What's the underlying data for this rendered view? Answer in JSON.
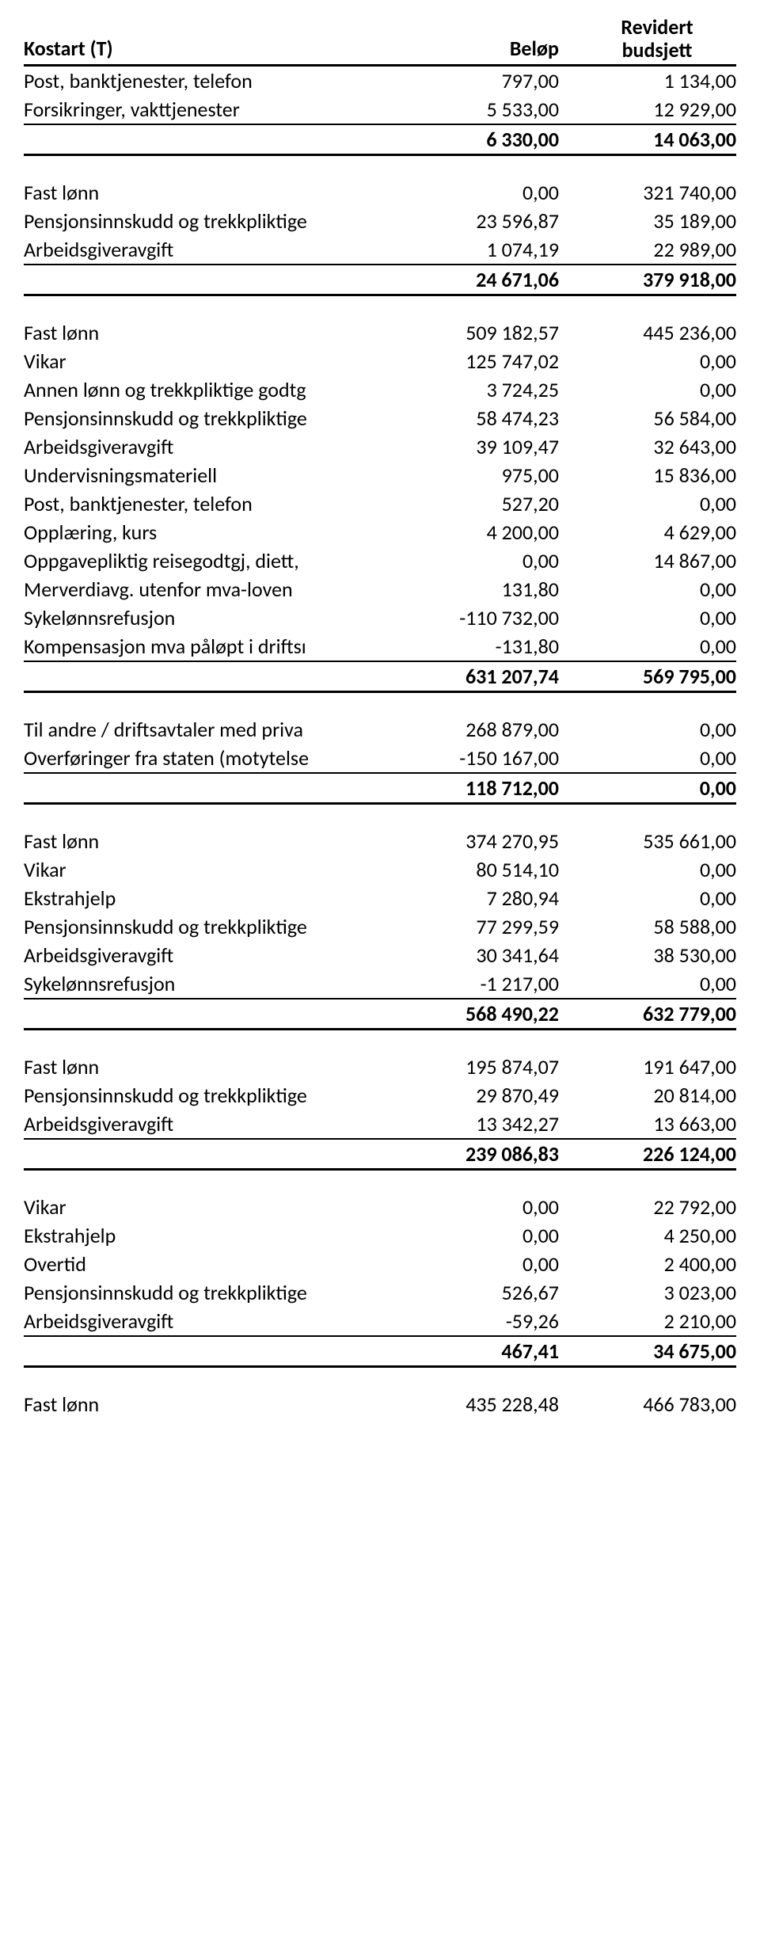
{
  "columns": {
    "label": "Kostart (T)",
    "belop": "Beløp",
    "budget_line1": "Revidert",
    "budget_line2": "budsjett"
  },
  "sections": [
    {
      "rows": [
        {
          "label": "Post, banktjenester, telefon",
          "belop": "797,00",
          "budget": "1 134,00"
        },
        {
          "label": "Forsikringer, vakttjenester",
          "belop": "5 533,00",
          "budget": "12 929,00"
        }
      ],
      "subtotal": {
        "label": "",
        "belop": "6 330,00",
        "budget": "14 063,00"
      }
    },
    {
      "rows": [
        {
          "label": "Fast lønn",
          "belop": "0,00",
          "budget": "321 740,00"
        },
        {
          "label": "Pensjonsinnskudd og trekkpliktige",
          "belop": "23 596,87",
          "budget": "35 189,00"
        },
        {
          "label": "Arbeidsgiveravgift",
          "belop": "1 074,19",
          "budget": "22 989,00"
        }
      ],
      "subtotal": {
        "label": "",
        "belop": "24 671,06",
        "budget": "379 918,00"
      }
    },
    {
      "rows": [
        {
          "label": "Fast lønn",
          "belop": "509 182,57",
          "budget": "445 236,00"
        },
        {
          "label": "Vikar",
          "belop": "125 747,02",
          "budget": "0,00"
        },
        {
          "label": "Annen lønn og trekkpliktige godtg",
          "belop": "3 724,25",
          "budget": "0,00"
        },
        {
          "label": "Pensjonsinnskudd og trekkpliktige",
          "belop": "58 474,23",
          "budget": "56 584,00"
        },
        {
          "label": "Arbeidsgiveravgift",
          "belop": "39 109,47",
          "budget": "32 643,00"
        },
        {
          "label": "Undervisningsmateriell",
          "belop": "975,00",
          "budget": "15 836,00"
        },
        {
          "label": "Post, banktjenester, telefon",
          "belop": "527,20",
          "budget": "0,00"
        },
        {
          "label": "Opplæring, kurs",
          "belop": "4 200,00",
          "budget": "4 629,00"
        },
        {
          "label": "Oppgavepliktig reisegodtgj, diett,",
          "belop": "0,00",
          "budget": "14 867,00"
        },
        {
          "label": "Merverdiavg. utenfor mva-loven",
          "belop": "131,80",
          "budget": "0,00"
        },
        {
          "label": "Sykelønnsrefusjon",
          "belop": "-110 732,00",
          "budget": "0,00"
        },
        {
          "label": "Kompensasjon mva påløpt i driftsı",
          "belop": "-131,80",
          "budget": "0,00"
        }
      ],
      "subtotal": {
        "label": "",
        "belop": "631 207,74",
        "budget": "569 795,00"
      }
    },
    {
      "rows": [
        {
          "label": "Til andre / driftsavtaler med priva",
          "belop": "268 879,00",
          "budget": "0,00"
        },
        {
          "label": "Overføringer fra staten (motytelse",
          "belop": "-150 167,00",
          "budget": "0,00"
        }
      ],
      "subtotal": {
        "label": "",
        "belop": "118 712,00",
        "budget": "0,00"
      }
    },
    {
      "rows": [
        {
          "label": "Fast lønn",
          "belop": "374 270,95",
          "budget": "535 661,00"
        },
        {
          "label": "Vikar",
          "belop": "80 514,10",
          "budget": "0,00"
        },
        {
          "label": "Ekstrahjelp",
          "belop": "7 280,94",
          "budget": "0,00"
        },
        {
          "label": "Pensjonsinnskudd og trekkpliktige",
          "belop": "77 299,59",
          "budget": "58 588,00"
        },
        {
          "label": "Arbeidsgiveravgift",
          "belop": "30 341,64",
          "budget": "38 530,00"
        },
        {
          "label": "Sykelønnsrefusjon",
          "belop": "-1 217,00",
          "budget": "0,00"
        }
      ],
      "subtotal": {
        "label": "",
        "belop": "568 490,22",
        "budget": "632 779,00"
      }
    },
    {
      "rows": [
        {
          "label": "Fast lønn",
          "belop": "195 874,07",
          "budget": "191 647,00"
        },
        {
          "label": "Pensjonsinnskudd og trekkpliktige",
          "belop": "29 870,49",
          "budget": "20 814,00"
        },
        {
          "label": "Arbeidsgiveravgift",
          "belop": "13 342,27",
          "budget": "13 663,00"
        }
      ],
      "subtotal": {
        "label": "",
        "belop": "239 086,83",
        "budget": "226 124,00"
      }
    },
    {
      "rows": [
        {
          "label": "Vikar",
          "belop": "0,00",
          "budget": "22 792,00"
        },
        {
          "label": "Ekstrahjelp",
          "belop": "0,00",
          "budget": "4 250,00"
        },
        {
          "label": "Overtid",
          "belop": "0,00",
          "budget": "2 400,00"
        },
        {
          "label": "Pensjonsinnskudd og trekkpliktige",
          "belop": "526,67",
          "budget": "3 023,00"
        },
        {
          "label": "Arbeidsgiveravgift",
          "belop": "-59,26",
          "budget": "2 210,00"
        }
      ],
      "subtotal": {
        "label": "",
        "belop": "467,41",
        "budget": "34 675,00"
      }
    },
    {
      "rows": [
        {
          "label": "Fast lønn",
          "belop": "435 228,48",
          "budget": "466 783,00"
        }
      ]
    }
  ]
}
